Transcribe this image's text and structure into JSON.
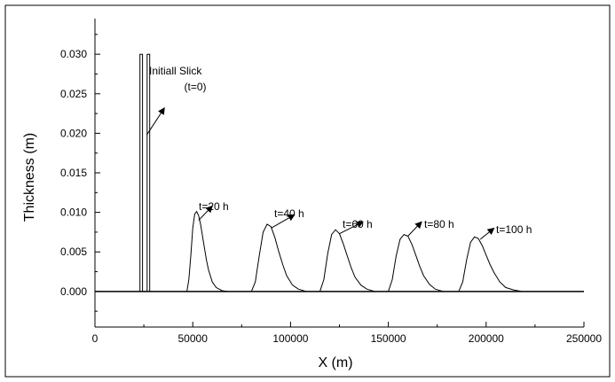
{
  "chart_data": {
    "type": "line",
    "xlabel": "X (m)",
    "ylabel": "Thickness (m)",
    "xlim": [
      0,
      250000
    ],
    "ylim": [
      -0.0045,
      0.0345
    ],
    "x_ticks": [
      "0",
      "50000",
      "100000",
      "150000",
      "200000",
      "250000"
    ],
    "y_ticks": [
      "0.000",
      "0.005",
      "0.010",
      "0.015",
      "0.020",
      "0.025",
      "0.030"
    ],
    "x_tick_values": [
      0,
      50000,
      100000,
      150000,
      200000,
      250000
    ],
    "y_tick_values": [
      0,
      0.005,
      0.01,
      0.015,
      0.02,
      0.025,
      0.03
    ],
    "grid": false,
    "series": [
      {
        "label": "Initiall Slick (t=0)",
        "x": [
          23000,
          23000,
          24300,
          24300,
          26700,
          26700,
          28000,
          28000
        ],
        "y": [
          0,
          0.03,
          0.03,
          0,
          0,
          0.03,
          0.03,
          0
        ]
      },
      {
        "label": "t=20 h",
        "x": [
          47000,
          48000,
          49000,
          50000,
          51000,
          52000,
          53000,
          54000,
          55000,
          56000,
          57000,
          58000,
          60000,
          62000,
          65000,
          68000
        ],
        "y": [
          0,
          0.0015,
          0.0045,
          0.008,
          0.0098,
          0.0101,
          0.0096,
          0.0085,
          0.007,
          0.0055,
          0.004,
          0.0028,
          0.0012,
          0.0005,
          0.0001,
          0
        ]
      },
      {
        "label": "t=40 h",
        "x": [
          80000,
          82000,
          84000,
          86000,
          88000,
          90000,
          92000,
          94000,
          96000,
          98000,
          101000,
          104000,
          108000
        ],
        "y": [
          0,
          0.0012,
          0.0045,
          0.0075,
          0.0085,
          0.0082,
          0.0068,
          0.005,
          0.0034,
          0.002,
          0.0008,
          0.0003,
          0
        ]
      },
      {
        "label": "t=60 h",
        "x": [
          115000,
          117000,
          119000,
          121000,
          123000,
          125000,
          127000,
          129000,
          131000,
          133000,
          136000,
          139000,
          143000
        ],
        "y": [
          0,
          0.0015,
          0.0048,
          0.0072,
          0.0078,
          0.0073,
          0.006,
          0.0045,
          0.003,
          0.0018,
          0.0008,
          0.0003,
          0
        ]
      },
      {
        "label": "t=80 h",
        "x": [
          150000,
          152000,
          154000,
          156000,
          158000,
          160000,
          162000,
          164000,
          166000,
          168000,
          171000,
          174000,
          178000
        ],
        "y": [
          0,
          0.0015,
          0.0045,
          0.0066,
          0.0072,
          0.007,
          0.006,
          0.0046,
          0.0032,
          0.002,
          0.0009,
          0.0003,
          0
        ]
      },
      {
        "label": "t=100 h",
        "x": [
          186000,
          188000,
          190000,
          192000,
          194000,
          196000,
          198000,
          200000,
          202000,
          204000,
          207000,
          210000,
          214000,
          218000
        ],
        "y": [
          0,
          0.0012,
          0.004,
          0.0062,
          0.0069,
          0.0067,
          0.0058,
          0.0046,
          0.0034,
          0.0024,
          0.0012,
          0.0005,
          0.0002,
          0
        ]
      }
    ],
    "annotations": [
      {
        "text": [
          "Initiall Slick",
          "(t=0)"
        ]
      },
      {
        "text": [
          "t=20 h"
        ]
      },
      {
        "text": [
          "t=40 h"
        ]
      },
      {
        "text": [
          "t=60 h"
        ]
      },
      {
        "text": [
          "t=80 h"
        ]
      },
      {
        "text": [
          "t=100 h"
        ]
      }
    ]
  }
}
